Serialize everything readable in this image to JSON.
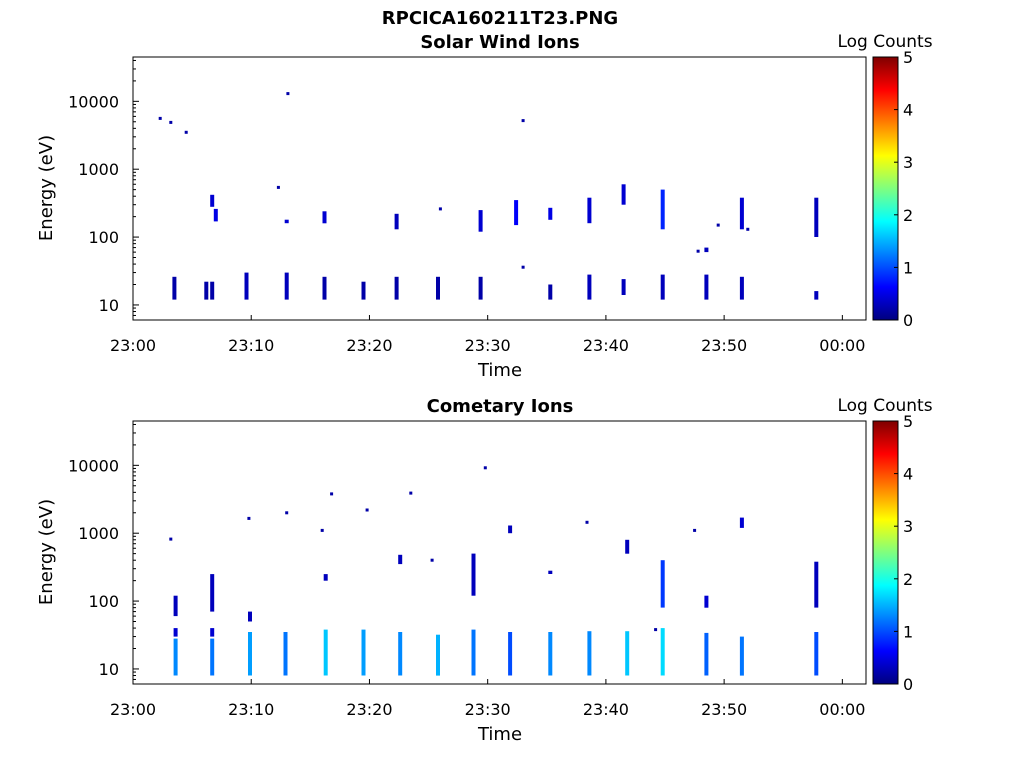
{
  "figure": {
    "main_title": "RPCICA160211T23.PNG"
  },
  "colorbar": {
    "label": "Log Counts",
    "range": [
      0,
      5
    ],
    "ticks": [
      "0",
      "1",
      "2",
      "3",
      "4",
      "5"
    ],
    "colormap": "jet",
    "stops": [
      "#00007f",
      "#0000ff",
      "#007fff",
      "#00ffff",
      "#7fff7f",
      "#ffff00",
      "#ff7f00",
      "#ff0000",
      "#7f0000"
    ]
  },
  "chart_data": [
    {
      "type": "heatmap",
      "title": "Solar Wind Ions",
      "xlabel": "Time",
      "ylabel": "Energy (eV)",
      "x_ticks": [
        "23:00",
        "23:10",
        "23:20",
        "23:30",
        "23:40",
        "23:50",
        "00:00"
      ],
      "x_range_minutes": [
        0,
        62
      ],
      "y_scale": "log",
      "y_ticks": [
        "10",
        "100",
        "1000",
        "10000"
      ],
      "y_range": [
        6,
        45000
      ],
      "grid": false,
      "columns": [
        {
          "t": 3.5,
          "bands": [
            [
              12,
              26,
              0.2
            ]
          ]
        },
        {
          "t": 6.2,
          "bands": [
            [
              12,
              22,
              0.2
            ]
          ]
        },
        {
          "t": 6.7,
          "bands": [
            [
              12,
              22,
              0.2
            ],
            [
              280,
              420,
              0.4
            ]
          ]
        },
        {
          "t": 7.0,
          "bands": [
            [
              170,
              260,
              0.5
            ]
          ]
        },
        {
          "t": 9.6,
          "bands": [
            [
              12,
              30,
              0.3
            ]
          ]
        },
        {
          "t": 13.0,
          "bands": [
            [
              12,
              30,
              0.3
            ],
            [
              160,
              180,
              0.4
            ]
          ]
        },
        {
          "t": 16.2,
          "bands": [
            [
              12,
              26,
              0.2
            ],
            [
              160,
              240,
              0.4
            ]
          ]
        },
        {
          "t": 19.5,
          "bands": [
            [
              12,
              22,
              0.2
            ]
          ]
        },
        {
          "t": 22.3,
          "bands": [
            [
              12,
              26,
              0.2
            ],
            [
              130,
              220,
              0.3
            ]
          ]
        },
        {
          "t": 25.8,
          "bands": [
            [
              12,
              26,
              0.2
            ]
          ]
        },
        {
          "t": 29.4,
          "bands": [
            [
              12,
              26,
              0.2
            ],
            [
              120,
              250,
              0.4
            ]
          ]
        },
        {
          "t": 32.4,
          "bands": [
            [
              150,
              350,
              0.6
            ]
          ]
        },
        {
          "t": 35.3,
          "bands": [
            [
              12,
              20,
              0.2
            ],
            [
              180,
              270,
              0.5
            ]
          ]
        },
        {
          "t": 38.6,
          "bands": [
            [
              12,
              28,
              0.3
            ],
            [
              160,
              380,
              0.4
            ]
          ]
        },
        {
          "t": 41.5,
          "bands": [
            [
              14,
              24,
              0.3
            ],
            [
              300,
              600,
              0.4
            ]
          ]
        },
        {
          "t": 44.8,
          "bands": [
            [
              12,
              28,
              0.3
            ],
            [
              130,
              500,
              0.8
            ]
          ]
        },
        {
          "t": 48.5,
          "bands": [
            [
              12,
              28,
              0.3
            ],
            [
              60,
              70,
              0.3
            ]
          ]
        },
        {
          "t": 51.5,
          "bands": [
            [
              12,
              26,
              0.3
            ],
            [
              130,
              380,
              0.4
            ]
          ]
        },
        {
          "t": 57.8,
          "bands": [
            [
              12,
              16,
              0.3
            ],
            [
              100,
              380,
              0.3
            ]
          ]
        }
      ],
      "points": [
        {
          "t": 2.3,
          "e": 5600
        },
        {
          "t": 3.2,
          "e": 4900
        },
        {
          "t": 4.5,
          "e": 3500
        },
        {
          "t": 13.1,
          "e": 13000
        },
        {
          "t": 12.3,
          "e": 540
        },
        {
          "t": 26.0,
          "e": 260
        },
        {
          "t": 33.0,
          "e": 5200
        },
        {
          "t": 33.0,
          "e": 36
        },
        {
          "t": 47.8,
          "e": 62
        },
        {
          "t": 49.5,
          "e": 150
        },
        {
          "t": 52.0,
          "e": 130
        }
      ]
    },
    {
      "type": "heatmap",
      "title": "Cometary Ions",
      "xlabel": "Time",
      "ylabel": "Energy (eV)",
      "x_ticks": [
        "23:00",
        "23:10",
        "23:20",
        "23:30",
        "23:40",
        "23:50",
        "00:00"
      ],
      "x_range_minutes": [
        0,
        62
      ],
      "y_scale": "log",
      "y_ticks": [
        "10",
        "100",
        "1000",
        "10000"
      ],
      "y_range": [
        6,
        45000
      ],
      "grid": false,
      "columns": [
        {
          "t": 3.6,
          "bands": [
            [
              8,
              28,
              1.3
            ],
            [
              30,
              40,
              0.4
            ],
            [
              60,
              120,
              0.3
            ]
          ]
        },
        {
          "t": 6.7,
          "bands": [
            [
              8,
              28,
              1.2
            ],
            [
              30,
              40,
              0.4
            ],
            [
              70,
              250,
              0.3
            ]
          ]
        },
        {
          "t": 9.9,
          "bands": [
            [
              8,
              35,
              1.4
            ],
            [
              50,
              70,
              0.3
            ]
          ]
        },
        {
          "t": 12.9,
          "bands": [
            [
              8,
              35,
              1.2
            ]
          ]
        },
        {
          "t": 16.3,
          "bands": [
            [
              8,
              38,
              1.6
            ],
            [
              200,
              250,
              0.3
            ]
          ]
        },
        {
          "t": 19.5,
          "bands": [
            [
              8,
              38,
              1.4
            ]
          ]
        },
        {
          "t": 22.6,
          "bands": [
            [
              8,
              35,
              1.3
            ],
            [
              350,
              480,
              0.3
            ]
          ]
        },
        {
          "t": 25.8,
          "bands": [
            [
              8,
              32,
              1.5
            ]
          ]
        },
        {
          "t": 28.8,
          "bands": [
            [
              8,
              38,
              1.2
            ],
            [
              120,
              500,
              0.3
            ]
          ]
        },
        {
          "t": 31.9,
          "bands": [
            [
              8,
              35,
              1.0
            ],
            [
              1000,
              1300,
              0.3
            ]
          ]
        },
        {
          "t": 35.3,
          "bands": [
            [
              8,
              35,
              1.3
            ],
            [
              250,
              280,
              0.3
            ]
          ]
        },
        {
          "t": 38.6,
          "bands": [
            [
              8,
              36,
              1.3
            ]
          ]
        },
        {
          "t": 41.8,
          "bands": [
            [
              8,
              36,
              1.6
            ],
            [
              500,
              800,
              0.3
            ]
          ]
        },
        {
          "t": 44.8,
          "bands": [
            [
              8,
              40,
              1.7
            ],
            [
              80,
              400,
              0.9
            ]
          ]
        },
        {
          "t": 48.5,
          "bands": [
            [
              8,
              34,
              1.1
            ],
            [
              80,
              120,
              0.4
            ]
          ]
        },
        {
          "t": 51.5,
          "bands": [
            [
              8,
              30,
              1.2
            ],
            [
              1200,
              1700,
              0.4
            ]
          ]
        },
        {
          "t": 57.8,
          "bands": [
            [
              8,
              35,
              1.0
            ],
            [
              80,
              380,
              0.3
            ]
          ]
        }
      ],
      "points": [
        {
          "t": 3.2,
          "e": 820
        },
        {
          "t": 9.8,
          "e": 1650
        },
        {
          "t": 13.0,
          "e": 2000
        },
        {
          "t": 16.0,
          "e": 1100
        },
        {
          "t": 16.8,
          "e": 3800
        },
        {
          "t": 19.8,
          "e": 2200
        },
        {
          "t": 23.5,
          "e": 3900
        },
        {
          "t": 25.3,
          "e": 400
        },
        {
          "t": 29.8,
          "e": 9200
        },
        {
          "t": 38.4,
          "e": 1450
        },
        {
          "t": 44.2,
          "e": 38
        },
        {
          "t": 47.5,
          "e": 1100
        }
      ]
    }
  ]
}
